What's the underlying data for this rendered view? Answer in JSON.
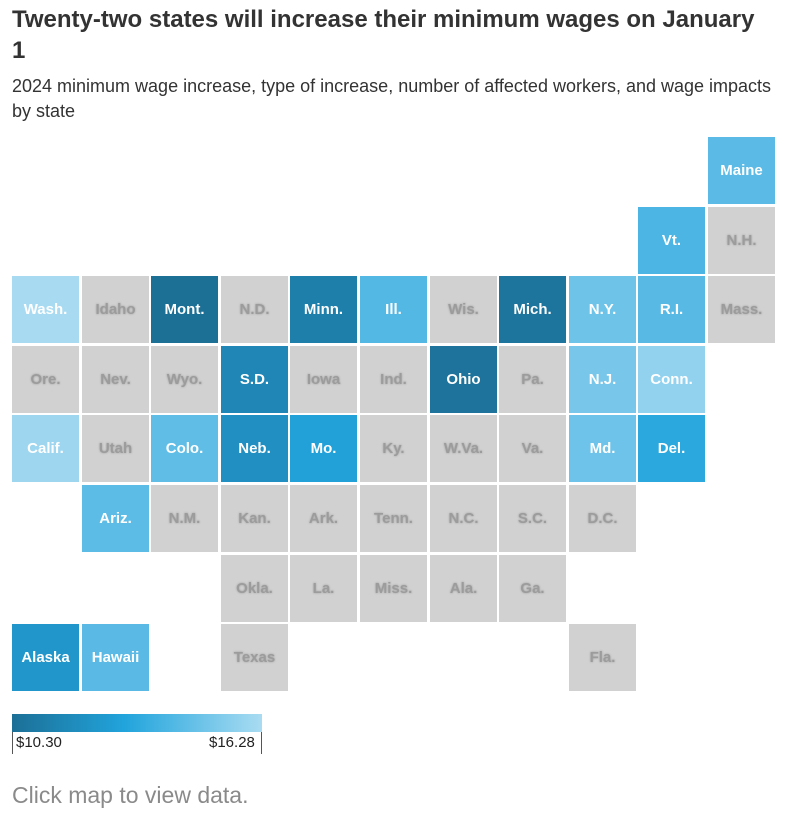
{
  "title": "Twenty-two states will increase their minimum wages on January 1",
  "subtitle": "2024 minimum wage increase, type of increase, number of affected workers, and wage impacts by state",
  "footer": "Click map to view data.",
  "legend": {
    "min_label": "$10.30",
    "max_label": "$16.28"
  },
  "colors": {
    "no_increase": "#d1d1d1",
    "scale": [
      "#1c6f96",
      "#21a4dc",
      "#a9dcf2"
    ]
  },
  "states": [
    {
      "abbr": "Maine",
      "increase": true,
      "color": "#5cbbe6"
    },
    {
      "abbr": "Vt.",
      "increase": true,
      "color": "#4cb5e3"
    },
    {
      "abbr": "N.H.",
      "increase": false
    },
    {
      "abbr": "Wash.",
      "increase": true,
      "color": "#a8dbf2"
    },
    {
      "abbr": "Idaho",
      "increase": false
    },
    {
      "abbr": "Mont.",
      "increase": true,
      "color": "#1c7096"
    },
    {
      "abbr": "N.D.",
      "increase": false
    },
    {
      "abbr": "Minn.",
      "increase": true,
      "color": "#1e7fab"
    },
    {
      "abbr": "Ill.",
      "increase": true,
      "color": "#53b8e4"
    },
    {
      "abbr": "Wis.",
      "increase": false
    },
    {
      "abbr": "Mich.",
      "increase": true,
      "color": "#1d749c"
    },
    {
      "abbr": "N.Y.",
      "increase": true,
      "color": "#6ec3e9"
    },
    {
      "abbr": "R.I.",
      "increase": true,
      "color": "#58b9e5"
    },
    {
      "abbr": "Mass.",
      "increase": false
    },
    {
      "abbr": "Ore.",
      "increase": false
    },
    {
      "abbr": "Nev.",
      "increase": false
    },
    {
      "abbr": "Wyo.",
      "increase": false
    },
    {
      "abbr": "S.D.",
      "increase": true,
      "color": "#1f86b6"
    },
    {
      "abbr": "Iowa",
      "increase": false
    },
    {
      "abbr": "Ind.",
      "increase": false
    },
    {
      "abbr": "Ohio",
      "increase": true,
      "color": "#1d739b"
    },
    {
      "abbr": "Pa.",
      "increase": false
    },
    {
      "abbr": "N.J.",
      "increase": true,
      "color": "#78c7ea"
    },
    {
      "abbr": "Conn.",
      "increase": true,
      "color": "#93d2ef"
    },
    {
      "abbr": "Calif.",
      "increase": true,
      "color": "#9ed6f0"
    },
    {
      "abbr": "Utah",
      "increase": false
    },
    {
      "abbr": "Colo.",
      "increase": true,
      "color": "#60bde6"
    },
    {
      "abbr": "Neb.",
      "increase": true,
      "color": "#218fc1"
    },
    {
      "abbr": "Mo.",
      "increase": true,
      "color": "#22a1d8"
    },
    {
      "abbr": "Ky.",
      "increase": false
    },
    {
      "abbr": "W.Va.",
      "increase": false
    },
    {
      "abbr": "Va.",
      "increase": false
    },
    {
      "abbr": "Md.",
      "increase": true,
      "color": "#6dc3e9"
    },
    {
      "abbr": "Del.",
      "increase": true,
      "color": "#2ba8de"
    },
    {
      "abbr": "Ariz.",
      "increase": true,
      "color": "#5dbce6"
    },
    {
      "abbr": "N.M.",
      "increase": false
    },
    {
      "abbr": "Kan.",
      "increase": false
    },
    {
      "abbr": "Ark.",
      "increase": false
    },
    {
      "abbr": "Tenn.",
      "increase": false
    },
    {
      "abbr": "N.C.",
      "increase": false
    },
    {
      "abbr": "S.C.",
      "increase": false
    },
    {
      "abbr": "D.C.",
      "increase": false
    },
    {
      "abbr": "Okla.",
      "increase": false
    },
    {
      "abbr": "La.",
      "increase": false
    },
    {
      "abbr": "Miss.",
      "increase": false
    },
    {
      "abbr": "Ala.",
      "increase": false
    },
    {
      "abbr": "Ga.",
      "increase": false
    },
    {
      "abbr": "Alaska",
      "increase": true,
      "color": "#2196ca"
    },
    {
      "abbr": "Hawaii",
      "increase": true,
      "color": "#5ab9e5"
    },
    {
      "abbr": "Texas",
      "increase": false
    },
    {
      "abbr": "Fla.",
      "increase": false
    }
  ]
}
